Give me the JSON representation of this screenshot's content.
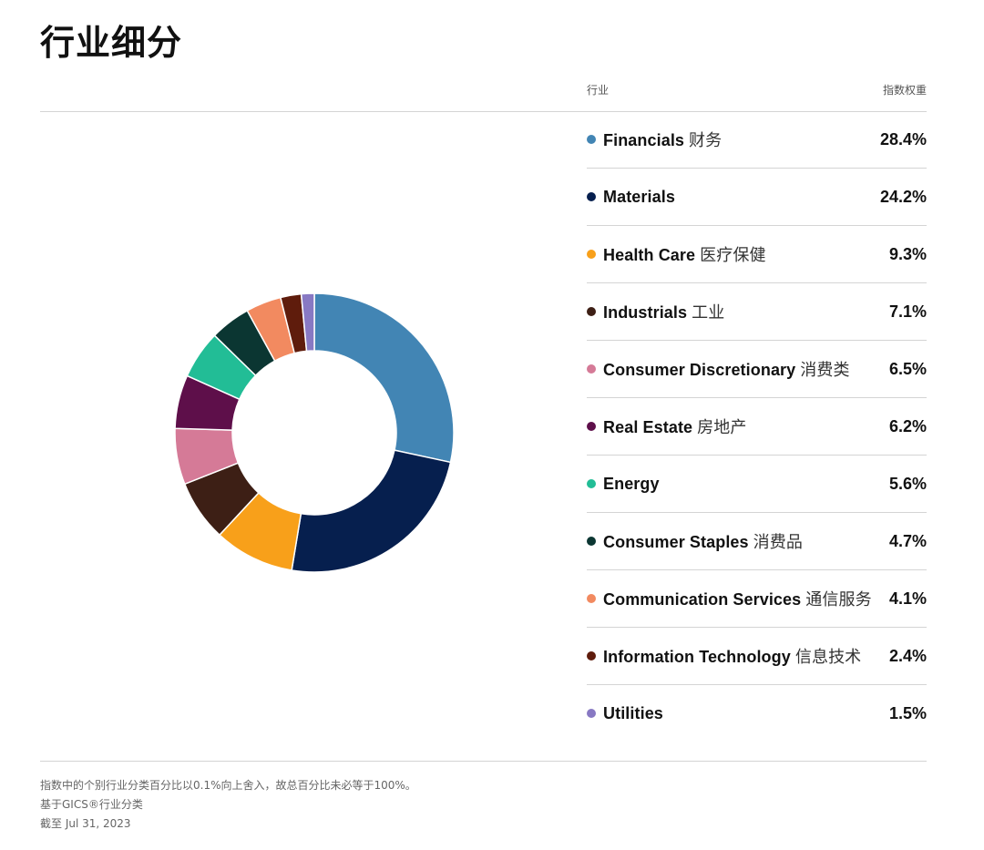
{
  "title": "行业细分",
  "table": {
    "col_sector": "行业",
    "col_weight": "指数权重"
  },
  "chart_data": {
    "type": "pie",
    "donut": true,
    "categories": [
      "Financials",
      "Materials",
      "Health Care",
      "Industrials",
      "Consumer Discretionary",
      "Real Estate",
      "Energy",
      "Consumer Staples",
      "Communication Services",
      "Information Technology",
      "Utilities"
    ],
    "values": [
      28.4,
      24.2,
      9.3,
      7.1,
      6.5,
      6.2,
      5.6,
      4.7,
      4.1,
      2.4,
      1.5
    ],
    "colors": [
      "#4285b4",
      "#061f4e",
      "#f8a01a",
      "#3d1f15",
      "#d57a97",
      "#5e0f4a",
      "#22bd96",
      "#0b3632",
      "#f28a60",
      "#5f1c0c",
      "#8879c3"
    ],
    "unit": "%"
  },
  "rows": [
    {
      "name": "Financials",
      "cn": "财务",
      "weight": "28.4%"
    },
    {
      "name": "Materials",
      "cn": "",
      "weight": "24.2%"
    },
    {
      "name": "Health Care",
      "cn": "医疗保健",
      "weight": "9.3%"
    },
    {
      "name": "Industrials",
      "cn": "工业",
      "weight": "7.1%"
    },
    {
      "name": "Consumer Discretionary",
      "cn": "消费类",
      "weight": "6.5%"
    },
    {
      "name": "Real Estate",
      "cn": "房地产",
      "weight": "6.2%"
    },
    {
      "name": "Energy",
      "cn": "",
      "weight": "5.6%"
    },
    {
      "name": "Consumer Staples",
      "cn": "消费品",
      "weight": "4.7%"
    },
    {
      "name": "Communication Services",
      "cn": "通信服务",
      "weight": "4.1%"
    },
    {
      "name": "Information Technology",
      "cn": "信息技术",
      "weight": "2.4%"
    },
    {
      "name": "Utilities",
      "cn": "",
      "weight": "1.5%"
    }
  ],
  "footnotes": [
    "指数中的个别行业分类百分比以0.1%向上舍入，故总百分比未必等于100%。",
    "基于GICS®行业分类",
    "截至 Jul 31, 2023"
  ]
}
